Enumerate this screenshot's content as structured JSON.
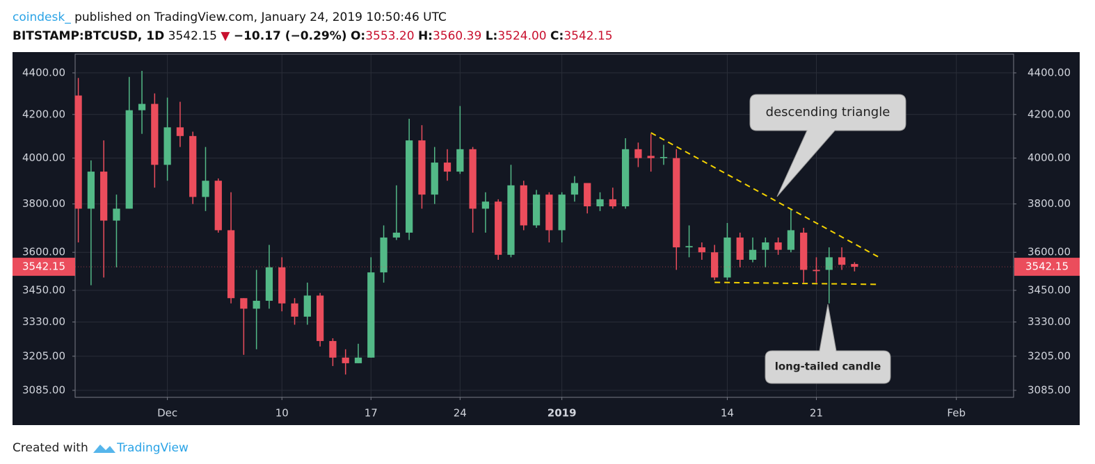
{
  "header": {
    "author": "coindesk_",
    "published": "published on TradingView.com, January 24, 2019 10:50:46 UTC",
    "symbol": "BITSTAMP:BTCUSD, 1D",
    "price": "3542.15",
    "change": "−10.17 (−0.29%)",
    "open_label": "O:",
    "open": "3553.20",
    "high_label": "H:",
    "high": "3560.39",
    "low_label": "L:",
    "low": "3524.00",
    "close_label": "C:",
    "close": "3542.15"
  },
  "footer": {
    "prefix": "Created with",
    "brand": "TradingView"
  },
  "chart_data": {
    "type": "candlestick",
    "log_scale": true,
    "grid": true,
    "up_color": "#53b987",
    "down_color": "#eb4d5c",
    "trendline_color": "#f5d300",
    "x": [
      "2018-11-24",
      "2018-11-25",
      "2018-11-26",
      "2018-11-27",
      "2018-11-28",
      "2018-11-29",
      "2018-11-30",
      "2018-12-01",
      "2018-12-02",
      "2018-12-03",
      "2018-12-04",
      "2018-12-05",
      "2018-12-06",
      "2018-12-07",
      "2018-12-08",
      "2018-12-09",
      "2018-12-10",
      "2018-12-11",
      "2018-12-12",
      "2018-12-13",
      "2018-12-14",
      "2018-12-15",
      "2018-12-16",
      "2018-12-17",
      "2018-12-18",
      "2018-12-19",
      "2018-12-20",
      "2018-12-21",
      "2018-12-22",
      "2018-12-23",
      "2018-12-24",
      "2018-12-25",
      "2018-12-26",
      "2018-12-27",
      "2018-12-28",
      "2018-12-29",
      "2018-12-30",
      "2018-12-31",
      "2019-01-01",
      "2019-01-02",
      "2019-01-03",
      "2019-01-04",
      "2019-01-05",
      "2019-01-06",
      "2019-01-07",
      "2019-01-08",
      "2019-01-09",
      "2019-01-10",
      "2019-01-11",
      "2019-01-12",
      "2019-01-13",
      "2019-01-14",
      "2019-01-15",
      "2019-01-16",
      "2019-01-17",
      "2019-01-18",
      "2019-01-19",
      "2019-01-20",
      "2019-01-21",
      "2019-01-22",
      "2019-01-23",
      "2019-01-24"
    ],
    "open": [
      4290,
      3780,
      3940,
      3730,
      3780,
      4220,
      4250,
      3970,
      4140,
      4100,
      3830,
      3900,
      3690,
      3420,
      3380,
      3410,
      3540,
      3400,
      3350,
      3430,
      3260,
      3200,
      3180,
      3200,
      3520,
      3660,
      3680,
      4080,
      3840,
      3980,
      3940,
      4040,
      3780,
      3810,
      3590,
      3880,
      3710,
      3840,
      3690,
      3840,
      3890,
      3790,
      3820,
      3790,
      4040,
      4010,
      4000,
      4000,
      3620,
      3620,
      3600,
      3500,
      3660,
      3570,
      3610,
      3640,
      3610,
      3680,
      3530,
      3530,
      3580,
      3553.2
    ],
    "high": [
      4375,
      3990,
      4080,
      3840,
      4380,
      4410,
      4300,
      4280,
      4260,
      4120,
      4050,
      3910,
      3850,
      3420,
      3530,
      3630,
      3580,
      3420,
      3480,
      3440,
      3270,
      3230,
      3250,
      3580,
      3710,
      3880,
      4180,
      4150,
      4050,
      4040,
      4240,
      4050,
      3850,
      3820,
      3970,
      3900,
      3860,
      3850,
      3850,
      3920,
      3890,
      3850,
      3870,
      4090,
      4070,
      4110,
      4060,
      4040,
      3710,
      3640,
      3630,
      3720,
      3680,
      3660,
      3660,
      3660,
      3780,
      3700,
      3580,
      3620,
      3620,
      3560.39
    ],
    "low": [
      3640,
      3470,
      3500,
      3540,
      3780,
      4110,
      3870,
      3900,
      4050,
      3800,
      3770,
      3680,
      3400,
      3210,
      3230,
      3380,
      3370,
      3320,
      3320,
      3240,
      3170,
      3140,
      3180,
      3200,
      3480,
      3650,
      3650,
      3780,
      3800,
      3900,
      3930,
      3680,
      3680,
      3570,
      3580,
      3690,
      3700,
      3640,
      3640,
      3810,
      3760,
      3770,
      3780,
      3780,
      3960,
      3940,
      3970,
      3530,
      3580,
      3570,
      3490,
      3490,
      3540,
      3560,
      3540,
      3590,
      3600,
      3480,
      3480,
      3400,
      3530,
      3524
    ],
    "close": [
      3780,
      3940,
      3730,
      3780,
      4220,
      4250,
      3970,
      4140,
      4100,
      3830,
      3900,
      3690,
      3420,
      3380,
      3410,
      3540,
      3400,
      3350,
      3430,
      3260,
      3200,
      3180,
      3200,
      3520,
      3660,
      3680,
      4080,
      3840,
      3980,
      3940,
      4040,
      3780,
      3810,
      3590,
      3880,
      3710,
      3840,
      3690,
      3840,
      3890,
      3790,
      3820,
      3790,
      4040,
      4000,
      4000,
      4005,
      3620,
      3625,
      3600,
      3500,
      3660,
      3570,
      3610,
      3640,
      3610,
      3690,
      3530,
      3525,
      3580,
      3550,
      3542.15
    ],
    "last_price": {
      "value": 3542.15,
      "label": "3542.15"
    },
    "xlim": [
      "2018-11-23T18:00:00Z",
      "2019-02-05T12:00:00Z"
    ],
    "xticks": [
      {
        "value": "2018-12-01",
        "label": "Dec"
      },
      {
        "value": "2018-12-10",
        "label": "10"
      },
      {
        "value": "2018-12-17",
        "label": "17"
      },
      {
        "value": "2018-12-24",
        "label": "24"
      },
      {
        "value": "2019-01-01",
        "label": "2019"
      },
      {
        "value": "2019-01-14",
        "label": "14"
      },
      {
        "value": "2019-01-21",
        "label": "21"
      },
      {
        "value": "2019-02-01",
        "label": "Feb"
      }
    ],
    "ylim": [
      3061,
      4493
    ],
    "yticks": [
      {
        "value": 3085,
        "label": "3085.00"
      },
      {
        "value": 3205,
        "label": "3205.00"
      },
      {
        "value": 3330,
        "label": "3330.00"
      },
      {
        "value": 3450,
        "label": "3450.00"
      },
      {
        "value": 3600,
        "label": "3600.00"
      },
      {
        "value": 3800,
        "label": "3800.00"
      },
      {
        "value": 4000,
        "label": "4000.00"
      },
      {
        "value": 4200,
        "label": "4200.00"
      },
      {
        "value": 4400,
        "label": "4400.00"
      }
    ],
    "trendlines": [
      {
        "x": [
          "2019-01-08",
          "2019-01-26"
        ],
        "y": [
          4115,
          3578
        ]
      },
      {
        "x": [
          "2019-01-13",
          "2019-01-26"
        ],
        "y": [
          3481,
          3473
        ]
      }
    ],
    "annotations": [
      {
        "text": "descending triangle"
      },
      {
        "text": "long-tailed candle"
      }
    ]
  }
}
